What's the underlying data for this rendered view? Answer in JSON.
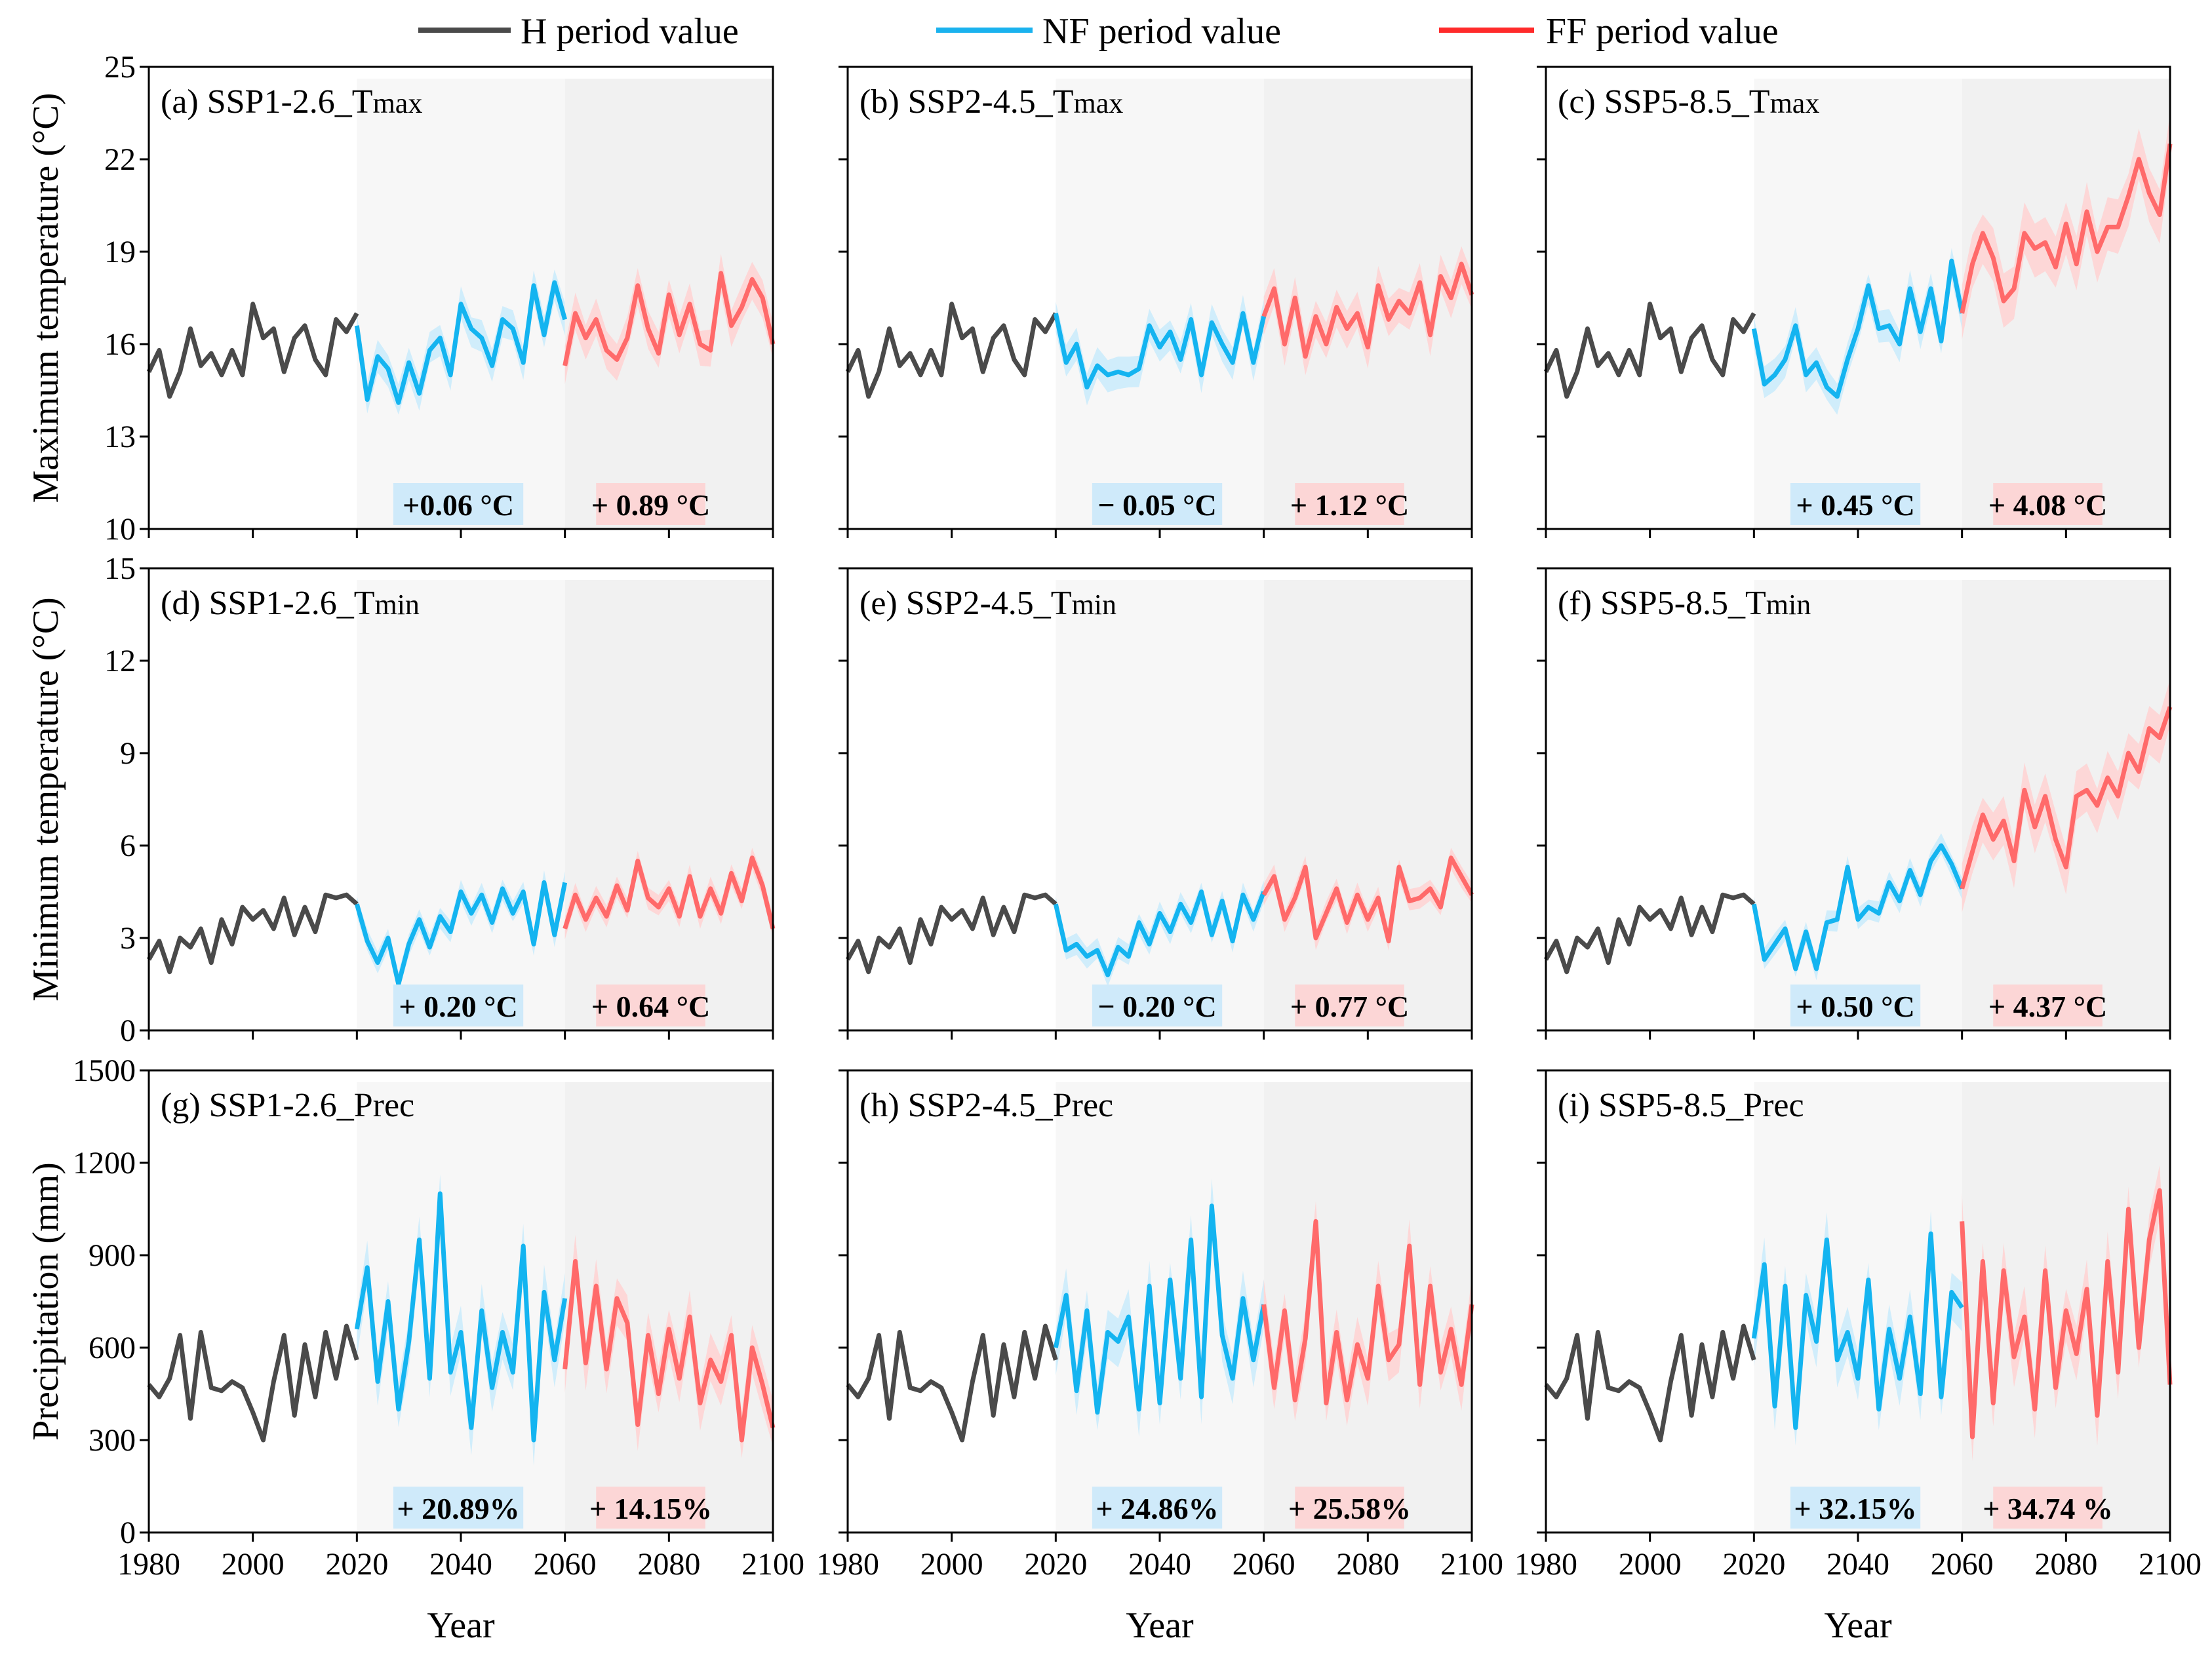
{
  "legend": [
    {
      "label": "H period value",
      "color": "#4a4a4a"
    },
    {
      "label": "NF period value",
      "color": "#1ab2ee"
    },
    {
      "label": "FF period value",
      "color": "#ff2a2a"
    }
  ],
  "colors": {
    "h_line": "#4a4a4a",
    "nf_line": "#14b4f0",
    "ff_line": "#ff6a6a",
    "nf_band": "#c9ebfb",
    "ff_band": "#ffd2d2",
    "nf_box": "#cfeafa",
    "ff_box": "#fcd6d6",
    "nf_shade": "#f7f7f7",
    "ff_shade": "#f1f1f1"
  },
  "row_ylabels": [
    "Maximum temperature (°C)",
    "Minimum temperature (°C)",
    "Precipitation (mm)"
  ],
  "xlabel": "Year",
  "chart_data": [
    {
      "type": "line",
      "title": "(a) SSP1-2.6_Tmax",
      "ylim": [
        10,
        25
      ],
      "yticks": [
        10,
        13,
        16,
        19,
        22,
        25
      ],
      "xlim": [
        1980,
        2100
      ],
      "xticks": [
        1980,
        2000,
        2020,
        2040,
        2060,
        2080,
        2100
      ],
      "h": {
        "x_start": 1980,
        "step": 2,
        "values": [
          15.1,
          15.8,
          14.3,
          15.1,
          16.5,
          15.3,
          15.7,
          15.0,
          15.8,
          15.0,
          17.3,
          16.2,
          16.5,
          15.1,
          16.2,
          16.6,
          15.5,
          15.0,
          16.8,
          16.4,
          17.0
        ]
      },
      "nf": {
        "x_start": 2020,
        "step": 2,
        "values": [
          16.6,
          14.2,
          15.6,
          15.2,
          14.1,
          15.4,
          14.4,
          15.8,
          16.2,
          15.0,
          17.3,
          16.5,
          16.2,
          15.3,
          16.8,
          16.5,
          15.4,
          17.9,
          16.3,
          18.0,
          16.8
        ],
        "band": 0.6
      },
      "ff": {
        "x_start": 2060,
        "step": 2,
        "values": [
          15.3,
          17.0,
          16.2,
          16.8,
          15.8,
          15.5,
          16.2,
          17.9,
          16.5,
          15.7,
          17.6,
          16.3,
          17.3,
          16.0,
          15.8,
          18.3,
          16.6,
          17.2,
          18.1,
          17.5,
          16.0
        ],
        "band": 0.7
      },
      "nf_change": "+0.06 °C",
      "ff_change": "+ 0.89 °C"
    },
    {
      "type": "line",
      "title": "(b) SSP2-4.5_Tmax",
      "ylim": [
        10,
        25
      ],
      "yticks": [
        10,
        13,
        16,
        19,
        22,
        25
      ],
      "xlim": [
        1980,
        2100
      ],
      "xticks": [
        1980,
        2000,
        2020,
        2040,
        2060,
        2080,
        2100
      ],
      "h": {
        "x_start": 1980,
        "step": 2,
        "values": [
          15.1,
          15.8,
          14.3,
          15.1,
          16.5,
          15.3,
          15.7,
          15.0,
          15.8,
          15.0,
          17.3,
          16.2,
          16.5,
          15.1,
          16.2,
          16.6,
          15.5,
          15.0,
          16.8,
          16.4,
          17.0
        ]
      },
      "nf": {
        "x_start": 2020,
        "step": 2,
        "values": [
          17.0,
          15.4,
          16.0,
          14.6,
          15.3,
          15.0,
          15.1,
          15.0,
          15.2,
          16.6,
          15.9,
          16.4,
          15.5,
          16.8,
          15.0,
          16.7,
          16.0,
          15.4,
          17.0,
          15.4,
          16.9
        ],
        "band": 0.6
      },
      "ff": {
        "x_start": 2060,
        "step": 2,
        "values": [
          16.9,
          17.8,
          16.0,
          17.5,
          15.6,
          16.9,
          16.0,
          17.2,
          16.5,
          17.0,
          15.9,
          17.9,
          16.8,
          17.4,
          17.0,
          18.0,
          16.3,
          18.2,
          17.5,
          18.6,
          17.6
        ],
        "band": 0.7
      },
      "nf_change": "− 0.05 °C",
      "ff_change": "+ 1.12 °C"
    },
    {
      "type": "line",
      "title": "(c) SSP5-8.5_Tmax",
      "ylim": [
        10,
        25
      ],
      "yticks": [
        10,
        13,
        16,
        19,
        22,
        25
      ],
      "xlim": [
        1980,
        2100
      ],
      "xticks": [
        1980,
        2000,
        2020,
        2040,
        2060,
        2080,
        2100
      ],
      "h": {
        "x_start": 1980,
        "step": 2,
        "values": [
          15.1,
          15.8,
          14.3,
          15.1,
          16.5,
          15.3,
          15.7,
          15.0,
          15.8,
          15.0,
          17.3,
          16.2,
          16.5,
          15.1,
          16.2,
          16.6,
          15.5,
          15.0,
          16.8,
          16.4,
          17.0
        ]
      },
      "nf": {
        "x_start": 2020,
        "step": 2,
        "values": [
          16.5,
          14.7,
          15.0,
          15.5,
          16.6,
          15.0,
          15.4,
          14.6,
          14.3,
          15.5,
          16.5,
          17.9,
          16.5,
          16.6,
          16.0,
          17.8,
          16.4,
          17.8,
          16.1,
          18.7,
          17.0
        ],
        "band": 0.6
      },
      "ff": {
        "x_start": 2060,
        "step": 2,
        "values": [
          17.0,
          18.6,
          19.6,
          18.8,
          17.4,
          17.8,
          19.6,
          19.1,
          19.3,
          18.5,
          19.9,
          18.6,
          20.3,
          19.0,
          19.8,
          19.8,
          20.8,
          22.0,
          20.9,
          20.2,
          22.5
        ],
        "band": 1.0
      },
      "nf_change": "+ 0.45 °C",
      "ff_change": "+ 4.08 °C"
    },
    {
      "type": "line",
      "title": "(d) SSP1-2.6_Tmin",
      "ylim": [
        0,
        15
      ],
      "yticks": [
        0,
        3,
        6,
        9,
        12,
        15
      ],
      "xlim": [
        1980,
        2100
      ],
      "xticks": [
        1980,
        2000,
        2020,
        2040,
        2060,
        2080,
        2100
      ],
      "h": {
        "x_start": 1980,
        "step": 2,
        "values": [
          2.3,
          2.9,
          1.9,
          3.0,
          2.7,
          3.3,
          2.2,
          3.6,
          2.8,
          4.0,
          3.6,
          3.9,
          3.3,
          4.3,
          3.1,
          4.0,
          3.2,
          4.4,
          4.3,
          4.4,
          4.1
        ]
      },
      "nf": {
        "x_start": 2020,
        "step": 2,
        "values": [
          4.1,
          2.9,
          2.2,
          3.0,
          1.5,
          2.8,
          3.6,
          2.7,
          3.7,
          3.2,
          4.5,
          3.8,
          4.4,
          3.5,
          4.6,
          3.8,
          4.5,
          2.8,
          4.8,
          3.1,
          4.8
        ],
        "band": 0.4
      },
      "ff": {
        "x_start": 2060,
        "step": 2,
        "values": [
          3.3,
          4.4,
          3.6,
          4.3,
          3.7,
          4.7,
          3.9,
          5.5,
          4.3,
          4.0,
          4.6,
          3.7,
          5.0,
          3.7,
          4.6,
          3.8,
          5.1,
          4.2,
          5.6,
          4.7,
          3.3
        ],
        "band": 0.4
      },
      "nf_change": "+ 0.20 °C",
      "ff_change": "+ 0.64 °C"
    },
    {
      "type": "line",
      "title": "(e) SSP2-4.5_Tmin",
      "ylim": [
        0,
        15
      ],
      "yticks": [
        0,
        3,
        6,
        9,
        12,
        15
      ],
      "xlim": [
        1980,
        2100
      ],
      "xticks": [
        1980,
        2000,
        2020,
        2040,
        2060,
        2080,
        2100
      ],
      "h": {
        "x_start": 1980,
        "step": 2,
        "values": [
          2.3,
          2.9,
          1.9,
          3.0,
          2.7,
          3.3,
          2.2,
          3.6,
          2.8,
          4.0,
          3.6,
          3.9,
          3.3,
          4.3,
          3.1,
          4.0,
          3.2,
          4.4,
          4.3,
          4.4,
          4.1
        ]
      },
      "nf": {
        "x_start": 2020,
        "step": 2,
        "values": [
          4.1,
          2.6,
          2.8,
          2.4,
          2.6,
          1.8,
          2.7,
          2.4,
          3.5,
          2.8,
          3.8,
          3.2,
          4.1,
          3.5,
          4.5,
          3.1,
          4.2,
          2.9,
          4.4,
          3.6,
          4.5
        ],
        "band": 0.4
      },
      "ff": {
        "x_start": 2060,
        "step": 2,
        "values": [
          4.4,
          5.0,
          3.6,
          4.3,
          5.3,
          3.0,
          3.8,
          4.6,
          3.5,
          4.4,
          3.6,
          4.3,
          2.9,
          5.3,
          4.2,
          4.3,
          4.6,
          4.0,
          5.6,
          5.0,
          4.4
        ],
        "band": 0.4
      },
      "nf_change": "− 0.20 °C",
      "ff_change": "+ 0.77 °C"
    },
    {
      "type": "line",
      "title": "(f) SSP5-8.5_Tmin",
      "ylim": [
        0,
        15
      ],
      "yticks": [
        0,
        3,
        6,
        9,
        12,
        15
      ],
      "xlim": [
        1980,
        2100
      ],
      "xticks": [
        1980,
        2000,
        2020,
        2040,
        2060,
        2080,
        2100
      ],
      "h": {
        "x_start": 1980,
        "step": 2,
        "values": [
          2.3,
          2.9,
          1.9,
          3.0,
          2.7,
          3.3,
          2.2,
          3.6,
          2.8,
          4.0,
          3.6,
          3.9,
          3.3,
          4.3,
          3.1,
          4.0,
          3.2,
          4.4,
          4.3,
          4.4,
          4.1
        ]
      },
      "nf": {
        "x_start": 2020,
        "step": 2,
        "values": [
          4.1,
          2.3,
          2.8,
          3.3,
          2.0,
          3.2,
          2.0,
          3.5,
          3.6,
          5.3,
          3.6,
          4.0,
          3.8,
          4.8,
          4.2,
          5.2,
          4.4,
          5.5,
          6.0,
          5.4,
          4.6
        ],
        "band": 0.4
      },
      "ff": {
        "x_start": 2060,
        "step": 2,
        "values": [
          4.6,
          5.8,
          7.0,
          6.2,
          6.8,
          5.5,
          7.8,
          6.6,
          7.6,
          6.2,
          5.3,
          7.6,
          7.8,
          7.3,
          8.2,
          7.6,
          9.0,
          8.4,
          9.8,
          9.5,
          10.5
        ],
        "band": 0.9
      },
      "nf_change": "+ 0.50 °C",
      "ff_change": "+ 4.37 °C"
    },
    {
      "type": "line",
      "title": "(g) SSP1-2.6_Prec",
      "ylim": [
        0,
        1500
      ],
      "yticks": [
        0,
        300,
        600,
        900,
        1200,
        1500
      ],
      "xlim": [
        1980,
        2100
      ],
      "xticks": [
        1980,
        2000,
        2020,
        2040,
        2060,
        2080,
        2100
      ],
      "h": {
        "x_start": 1980,
        "step": 2,
        "values": [
          480,
          440,
          500,
          640,
          370,
          650,
          470,
          460,
          490,
          470,
          390,
          300,
          490,
          640,
          380,
          610,
          440,
          650,
          500,
          670,
          560
        ]
      },
      "nf": {
        "x_start": 2020,
        "step": 2,
        "values": [
          660,
          860,
          490,
          750,
          400,
          620,
          950,
          500,
          1100,
          520,
          650,
          340,
          720,
          470,
          650,
          520,
          930,
          300,
          780,
          560,
          760
        ],
        "band": 90
      },
      "ff": {
        "x_start": 2060,
        "step": 2,
        "values": [
          530,
          880,
          550,
          800,
          530,
          760,
          680,
          350,
          640,
          450,
          660,
          500,
          700,
          420,
          560,
          490,
          640,
          300,
          600,
          480,
          340
        ],
        "band": 90
      },
      "nf_change": "+ 20.89%",
      "ff_change": "+ 14.15%"
    },
    {
      "type": "line",
      "title": "(h) SSP2-4.5_Prec",
      "ylim": [
        0,
        1500
      ],
      "yticks": [
        0,
        300,
        600,
        900,
        1200,
        1500
      ],
      "xlim": [
        1980,
        2100
      ],
      "xticks": [
        1980,
        2000,
        2020,
        2040,
        2060,
        2080,
        2100
      ],
      "h": {
        "x_start": 1980,
        "step": 2,
        "values": [
          480,
          440,
          500,
          640,
          370,
          650,
          470,
          460,
          490,
          470,
          390,
          300,
          490,
          640,
          380,
          610,
          440,
          650,
          500,
          670,
          560
        ]
      },
      "nf": {
        "x_start": 2020,
        "step": 2,
        "values": [
          600,
          770,
          460,
          720,
          390,
          650,
          620,
          700,
          400,
          800,
          420,
          820,
          500,
          950,
          440,
          1060,
          640,
          500,
          760,
          560,
          740
        ],
        "band": 90
      },
      "ff": {
        "x_start": 2060,
        "step": 2,
        "values": [
          740,
          470,
          720,
          430,
          630,
          1010,
          420,
          650,
          430,
          610,
          500,
          800,
          560,
          610,
          930,
          480,
          800,
          520,
          660,
          480,
          740
        ],
        "band": 90
      },
      "nf_change": "+ 24.86%",
      "ff_change": "+ 25.58%"
    },
    {
      "type": "line",
      "title": "(i) SSP5-8.5_Prec",
      "ylim": [
        0,
        1500
      ],
      "yticks": [
        0,
        300,
        600,
        900,
        1200,
        1500
      ],
      "xlim": [
        1980,
        2100
      ],
      "xticks": [
        1980,
        2000,
        2020,
        2040,
        2060,
        2080,
        2100
      ],
      "h": {
        "x_start": 1980,
        "step": 2,
        "values": [
          480,
          440,
          500,
          640,
          370,
          650,
          470,
          460,
          490,
          470,
          390,
          300,
          490,
          640,
          380,
          610,
          440,
          650,
          500,
          670,
          560
        ]
      },
      "nf": {
        "x_start": 2020,
        "step": 2,
        "values": [
          630,
          870,
          410,
          800,
          340,
          770,
          620,
          950,
          560,
          650,
          500,
          820,
          400,
          660,
          500,
          700,
          450,
          970,
          440,
          780,
          730
        ],
        "band": 90
      },
      "ff": {
        "x_start": 2060,
        "step": 2,
        "values": [
          1010,
          310,
          880,
          420,
          850,
          570,
          700,
          400,
          850,
          470,
          720,
          580,
          790,
          380,
          880,
          520,
          1050,
          600,
          950,
          1110,
          480
        ],
        "band": 100
      },
      "nf_change": "+ 32.15%",
      "ff_change": "+ 34.74 %"
    }
  ]
}
